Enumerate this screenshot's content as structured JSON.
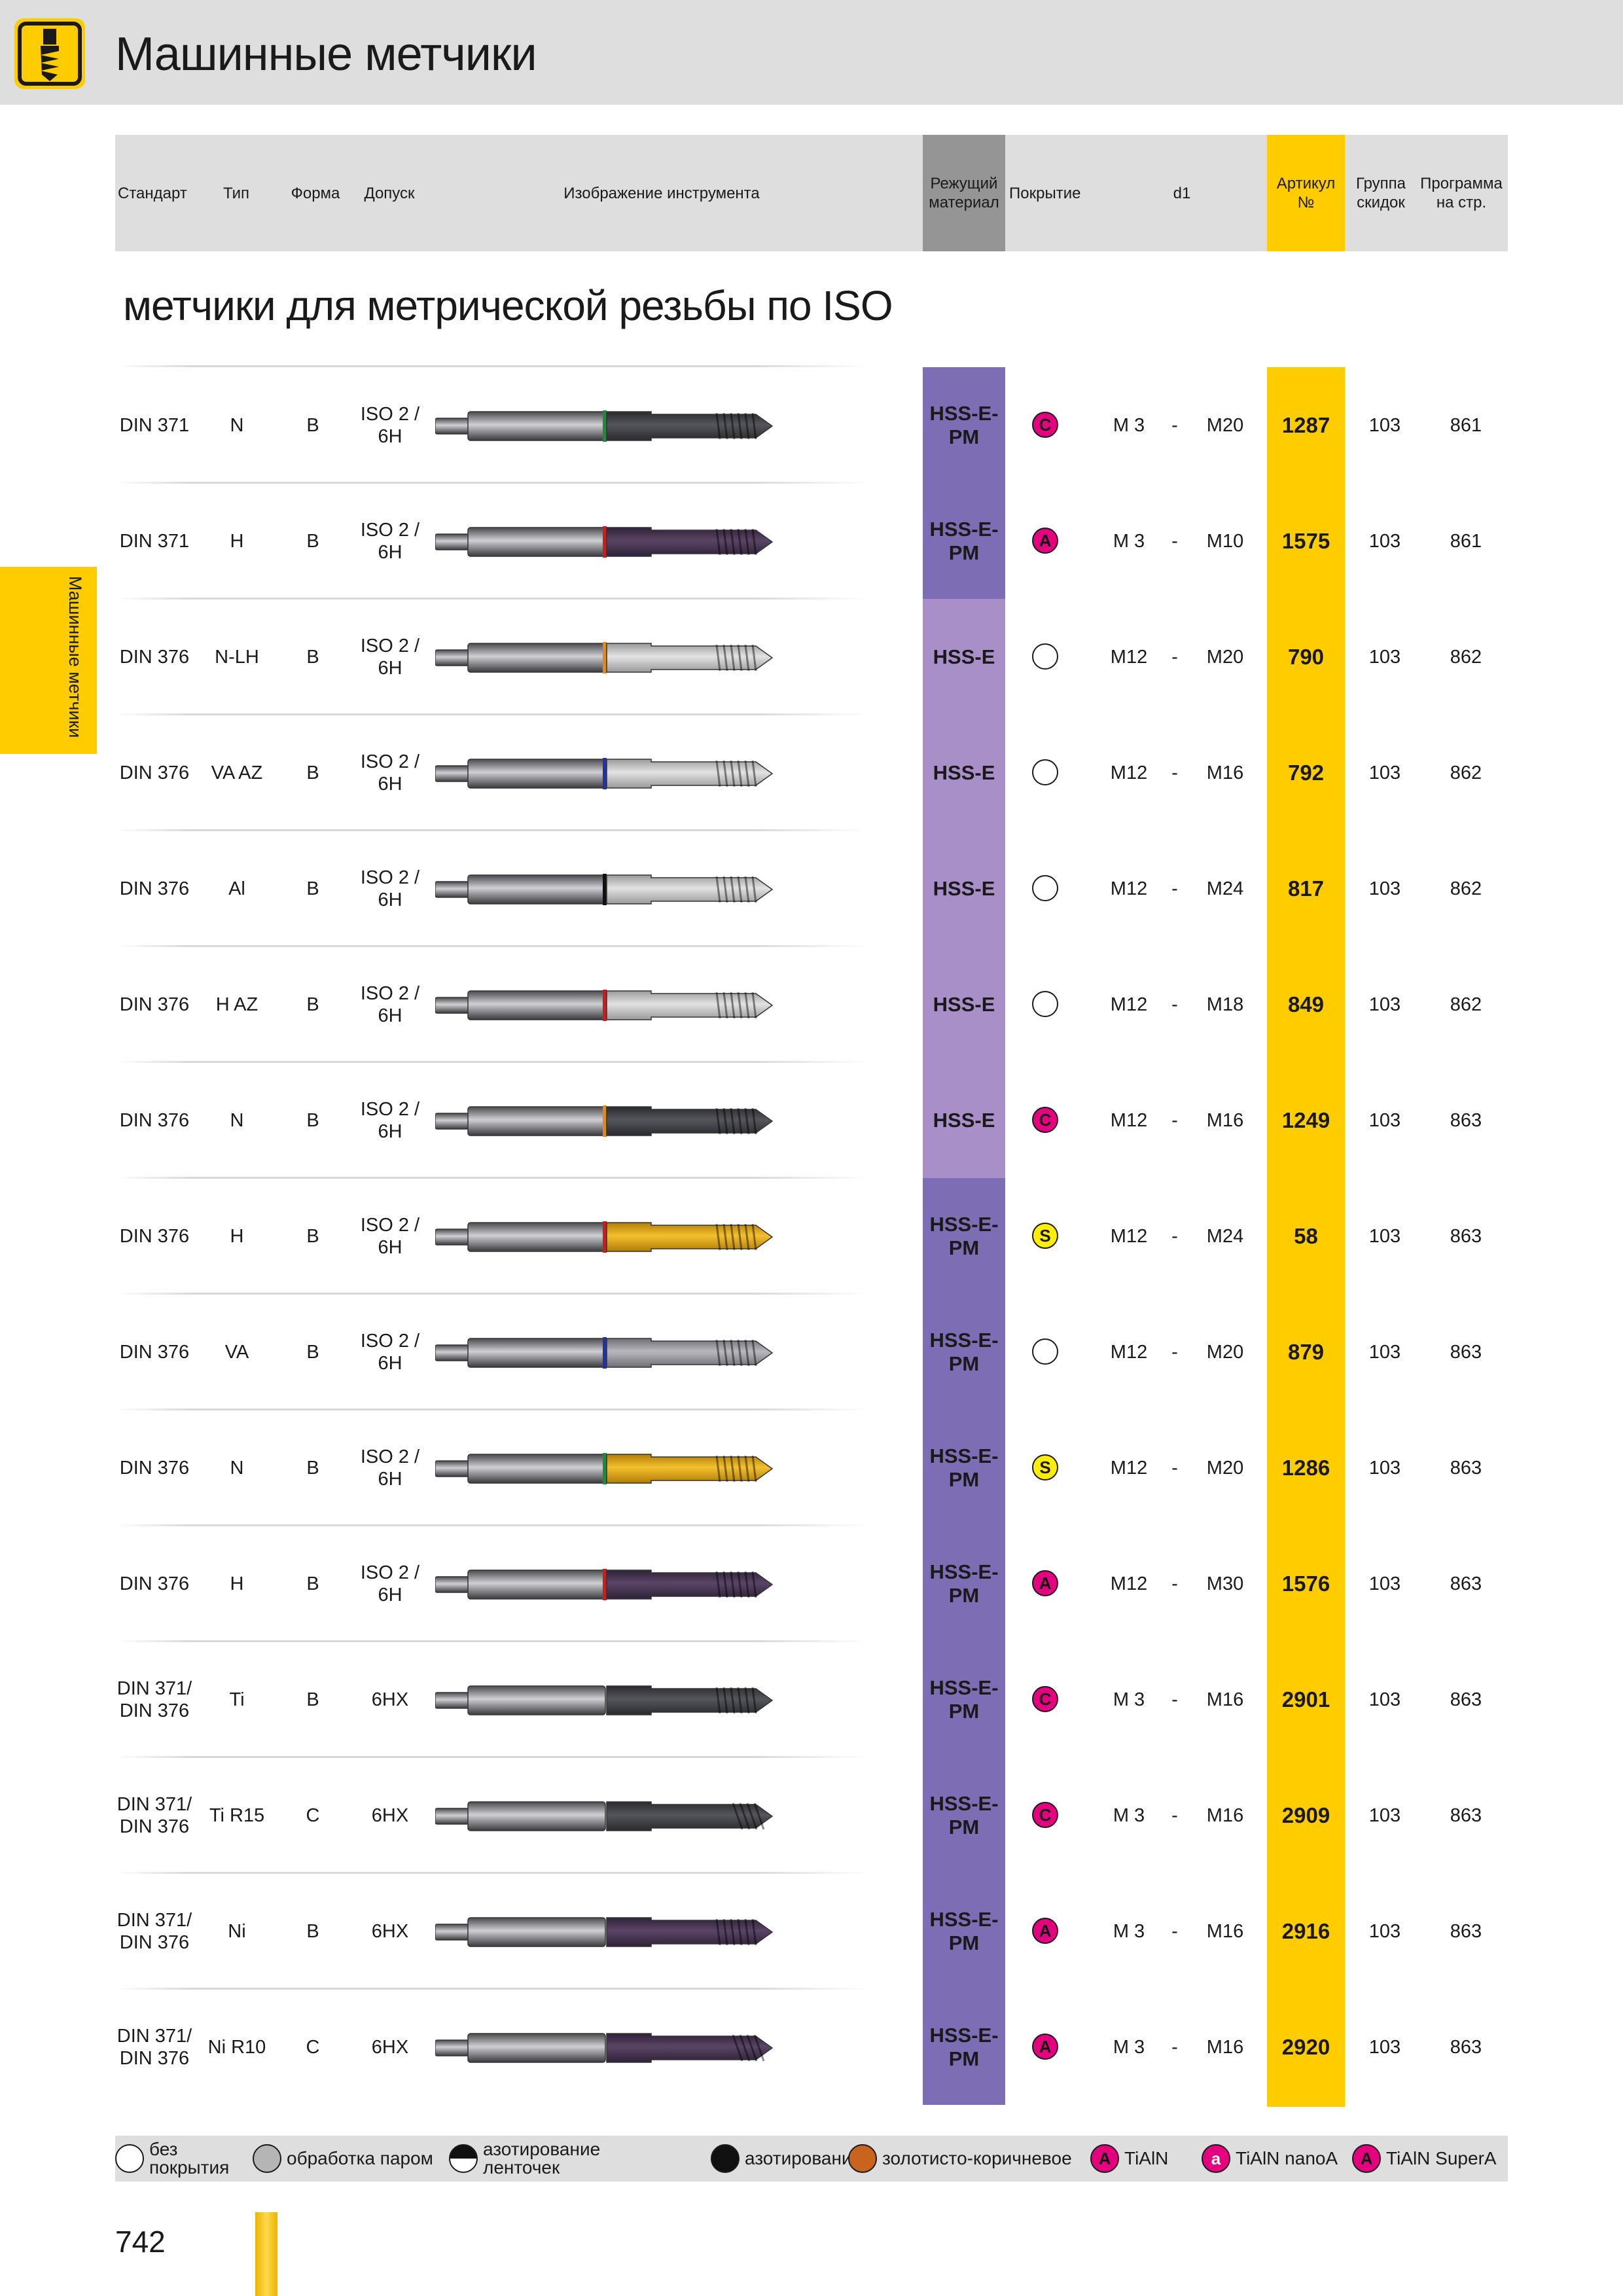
{
  "page": {
    "title": "Машинные метчики",
    "section_title": "метчики для метрической резьбы по  ISO",
    "side_tab": "Машинные метчики",
    "page_number": "742"
  },
  "colors": {
    "yellow": "#ffcc00",
    "hss_e_pm": "#7c6db5",
    "hss_e": "#a98fc8",
    "header_gray": "#dedede"
  },
  "header": {
    "standard": "Стандарт",
    "type": "Тип",
    "form": "Форма",
    "tolerance": "Допуск",
    "image": "Изображение инструмента",
    "material": "Режущий материал",
    "coating": "Покрытие",
    "d1": "d1",
    "article": "Артикул №",
    "discount": "Группа скидок",
    "program": "Программа на стр."
  },
  "rows": [
    {
      "standard": "DIN 371",
      "type": "N",
      "form": "B",
      "tolerance": "ISO 2 / 6H",
      "material": "HSS-E-PM",
      "coating": "C",
      "coating_icon": "tialn-nanoa-c-icon",
      "ring": "#1f8a3a",
      "head": "dark",
      "shape": "straight",
      "d1_from": "M 3",
      "dash": "-",
      "d1_to": "M20",
      "article": "1287",
      "discount": "103",
      "program": "861"
    },
    {
      "standard": "DIN 371",
      "type": "H",
      "form": "B",
      "tolerance": "ISO 2 / 6H",
      "material": "HSS-E-PM",
      "coating": "A",
      "coating_icon": "tialn-a-icon",
      "ring": "#d11a1a",
      "head": "violet",
      "shape": "straight",
      "d1_from": "M 3",
      "dash": "-",
      "d1_to": "M10",
      "article": "1575",
      "discount": "103",
      "program": "861"
    },
    {
      "standard": "DIN 376",
      "type": "N-LH",
      "form": "B",
      "tolerance": "ISO 2 / 6H",
      "material": "HSS-E",
      "coating": "",
      "coating_icon": "uncoated-icon",
      "ring": "#e08a1a",
      "head": "bright",
      "shape": "straight",
      "d1_from": "M12",
      "dash": "-",
      "d1_to": "M20",
      "article": "790",
      "discount": "103",
      "program": "862"
    },
    {
      "standard": "DIN 376",
      "type": "VA AZ",
      "form": "B",
      "tolerance": "ISO 2 / 6H",
      "material": "HSS-E",
      "coating": "",
      "coating_icon": "uncoated-icon",
      "ring": "#2233aa",
      "head": "bright",
      "shape": "straight",
      "d1_from": "M12",
      "dash": "-",
      "d1_to": "M16",
      "article": "792",
      "discount": "103",
      "program": "862"
    },
    {
      "standard": "DIN 376",
      "type": "Al",
      "form": "B",
      "tolerance": "ISO 2 / 6H",
      "material": "HSS-E",
      "coating": "",
      "coating_icon": "uncoated-icon",
      "ring": "#111111",
      "head": "bright",
      "shape": "straight",
      "d1_from": "M12",
      "dash": "-",
      "d1_to": "M24",
      "article": "817",
      "discount": "103",
      "program": "862"
    },
    {
      "standard": "DIN 376",
      "type": "H AZ",
      "form": "B",
      "tolerance": "ISO 2 / 6H",
      "material": "HSS-E",
      "coating": "",
      "coating_icon": "uncoated-icon",
      "ring": "#d11a1a",
      "head": "bright",
      "shape": "straight",
      "d1_from": "M12",
      "dash": "-",
      "d1_to": "M18",
      "article": "849",
      "discount": "103",
      "program": "862"
    },
    {
      "standard": "DIN 376",
      "type": "N",
      "form": "B",
      "tolerance": "ISO 2 / 6H",
      "material": "HSS-E",
      "coating": "C",
      "coating_icon": "tialn-nanoa-c-icon",
      "ring": "#e08a1a",
      "head": "dark",
      "shape": "straight",
      "d1_from": "M12",
      "dash": "-",
      "d1_to": "M16",
      "article": "1249",
      "discount": "103",
      "program": "863"
    },
    {
      "standard": "DIN 376",
      "type": "H",
      "form": "B",
      "tolerance": "ISO 2 / 6H",
      "material": "HSS-E-PM",
      "coating": "S",
      "coating_icon": "steam-s-icon",
      "ring": "#d11a1a",
      "head": "gold",
      "shape": "straight",
      "d1_from": "M12",
      "dash": "-",
      "d1_to": "M24",
      "article": "58",
      "discount": "103",
      "program": "863"
    },
    {
      "standard": "DIN 376",
      "type": "VA",
      "form": "B",
      "tolerance": "ISO 2 / 6H",
      "material": "HSS-E-PM",
      "coating": "",
      "coating_icon": "uncoated-icon",
      "ring": "#2233aa",
      "head": "steel",
      "shape": "straight",
      "d1_from": "M12",
      "dash": "-",
      "d1_to": "M20",
      "article": "879",
      "discount": "103",
      "program": "863"
    },
    {
      "standard": "DIN 376",
      "type": "N",
      "form": "B",
      "tolerance": "ISO 2 / 6H",
      "material": "HSS-E-PM",
      "coating": "S",
      "coating_icon": "steam-s-icon",
      "ring": "#1f8a3a",
      "head": "gold",
      "shape": "straight",
      "d1_from": "M12",
      "dash": "-",
      "d1_to": "M20",
      "article": "1286",
      "discount": "103",
      "program": "863"
    },
    {
      "standard": "DIN 376",
      "type": "H",
      "form": "B",
      "tolerance": "ISO 2 / 6H",
      "material": "HSS-E-PM",
      "coating": "A",
      "coating_icon": "tialn-a-icon",
      "ring": "#d11a1a",
      "head": "violet",
      "shape": "straight",
      "d1_from": "M12",
      "dash": "-",
      "d1_to": "M30",
      "article": "1576",
      "discount": "103",
      "program": "863"
    },
    {
      "standard": "DIN 371/ DIN 376",
      "type": "Ti",
      "form": "B",
      "tolerance": "6HX",
      "material": "HSS-E-PM",
      "coating": "C",
      "coating_icon": "tialn-nanoa-c-icon",
      "ring": "",
      "head": "dark",
      "shape": "straight",
      "d1_from": "M 3",
      "dash": "-",
      "d1_to": "M16",
      "article": "2901",
      "discount": "103",
      "program": "863"
    },
    {
      "standard": "DIN 371/ DIN 376",
      "type": "Ti R15",
      "form": "C",
      "tolerance": "6HX",
      "material": "HSS-E-PM",
      "coating": "C",
      "coating_icon": "tialn-nanoa-c-icon",
      "ring": "",
      "head": "dark",
      "shape": "spiral",
      "d1_from": "M 3",
      "dash": "-",
      "d1_to": "M16",
      "article": "2909",
      "discount": "103",
      "program": "863"
    },
    {
      "standard": "DIN 371/ DIN 376",
      "type": "Ni",
      "form": "B",
      "tolerance": "6HX",
      "material": "HSS-E-PM",
      "coating": "A",
      "coating_icon": "tialn-a-icon",
      "ring": "",
      "head": "violet",
      "shape": "straight",
      "d1_from": "M 3",
      "dash": "-",
      "d1_to": "M16",
      "article": "2916",
      "discount": "103",
      "program": "863"
    },
    {
      "standard": "DIN 371/ DIN 376",
      "type": "Ni R10",
      "form": "C",
      "tolerance": "6HX",
      "material": "HSS-E-PM",
      "coating": "A",
      "coating_icon": "tialn-a-icon",
      "ring": "",
      "head": "violet",
      "shape": "spiral",
      "d1_from": "M 3",
      "dash": "-",
      "d1_to": "M16",
      "article": "2920",
      "discount": "103",
      "program": "863"
    }
  ],
  "legend": [
    {
      "label": "без покрытия",
      "icon": "uncoated-icon",
      "letter": "",
      "fill": "#ffffff",
      "color": "#1a1a1a"
    },
    {
      "label": "обработка паром",
      "icon": "steam-treatment-icon",
      "letter": "",
      "fill": "#b5b5b5",
      "color": "#1a1a1a"
    },
    {
      "label": "азотирование ленточек",
      "icon": "land-nitriding-icon",
      "letter": "",
      "fill": "half",
      "color": "#1a1a1a"
    },
    {
      "label": "азотирование",
      "icon": "nitriding-icon",
      "letter": "",
      "fill": "#111111",
      "color": "#ffffff"
    },
    {
      "label": "золотисто-коричневое",
      "icon": "gold-brown-icon",
      "letter": "",
      "fill": "#c8641e",
      "color": "#ffffff"
    },
    {
      "label": "TiAlN",
      "icon": "tialn-icon",
      "letter": "A",
      "fill": "#e4007e",
      "color": "#111111"
    },
    {
      "label": "TiAlN nanoA",
      "icon": "tialn-nanoa-icon",
      "letter": "a",
      "fill": "#e4007e",
      "color": "#ffffff"
    },
    {
      "label": "TiAlN SuperA",
      "icon": "tialn-supera-icon",
      "letter": "A",
      "fill": "#e4007e",
      "color": "#111111"
    }
  ]
}
